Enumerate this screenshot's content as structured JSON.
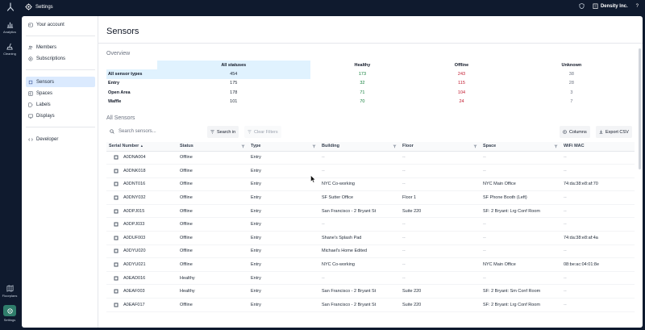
{
  "topbar": {
    "title": "Settings",
    "org": "Density Inc.",
    "help": "?"
  },
  "rail": {
    "items": [
      {
        "label": "Analytics",
        "icon": "analytics-icon"
      },
      {
        "label": "Cleaning",
        "icon": "cleaning-icon"
      },
      {
        "label": "Floorplans",
        "icon": "floorplans-icon"
      },
      {
        "label": "Settings",
        "icon": "settings-icon",
        "active": true
      }
    ]
  },
  "nav": {
    "items": [
      {
        "label": "Your account",
        "icon": "account-icon"
      },
      {
        "label": "Members",
        "icon": "members-icon"
      },
      {
        "label": "Subscriptions",
        "icon": "subscriptions-icon"
      },
      {
        "label": "Sensors",
        "icon": "sensors-icon",
        "active": true
      },
      {
        "label": "Spaces",
        "icon": "spaces-icon"
      },
      {
        "label": "Labels",
        "icon": "labels-icon"
      },
      {
        "label": "Displays",
        "icon": "displays-icon"
      },
      {
        "label": "Developer",
        "icon": "developer-icon"
      }
    ]
  },
  "main": {
    "title": "Sensors",
    "overview_label": "Overview",
    "all_sensors_label": "All Sensors"
  },
  "overview": {
    "headers": [
      "All statuses",
      "Healthy",
      "Offline",
      "Unknown"
    ],
    "rows": [
      {
        "label": "All sensor types",
        "values": [
          "454",
          "173",
          "243",
          "38"
        ]
      },
      {
        "label": "Entry",
        "values": [
          "175",
          "32",
          "115",
          "28"
        ]
      },
      {
        "label": "Open Area",
        "values": [
          "178",
          "71",
          "104",
          "3"
        ]
      },
      {
        "label": "Waffle",
        "values": [
          "101",
          "70",
          "24",
          "7"
        ]
      }
    ]
  },
  "toolbar": {
    "search_placeholder": "Search sensors...",
    "search_button": "Search in",
    "clear_filters": "Clear Filters",
    "columns_button": "Columns",
    "export_button": "Export CSV"
  },
  "grid": {
    "headers": [
      "Serial Number",
      "Status",
      "Type",
      "Building",
      "Floor",
      "Space",
      "WiFi MAC"
    ],
    "sort_indicator": "▲",
    "rows": [
      [
        "A0DNA004",
        "Offline",
        "Entry",
        "--",
        "--",
        "--",
        "--"
      ],
      [
        "A0DNK018",
        "Offline",
        "Entry",
        "--",
        "--",
        "--",
        "--"
      ],
      [
        "A0DNT016",
        "Offline",
        "Entry",
        "NYC Co-working",
        "--",
        "NYC Main Office",
        "74:da:38:e8:af:70"
      ],
      [
        "A0DNY032",
        "Offline",
        "Entry",
        "SF Sutter Office",
        "Floor 1",
        "SF Phone Booth (Left)",
        "--"
      ],
      [
        "A0DPJ015",
        "Offline",
        "Entry",
        "San Francisco - 2 Bryant St",
        "Suite 220",
        "SF: 2 Bryant: Lrg Conf Room",
        "--"
      ],
      [
        "A0DPJ033",
        "Offline",
        "Entry",
        "--",
        "--",
        "--",
        "--"
      ],
      [
        "A0DUF003",
        "Offline",
        "Entry",
        "Shane's Splash Pad",
        "--",
        "--",
        "74:da:38:e8:af:4a"
      ],
      [
        "A0DYU020",
        "Offline",
        "Entry",
        "Michael's Home Edited",
        "--",
        "--",
        "--"
      ],
      [
        "A0DYU021",
        "Offline",
        "Entry",
        "NYC Co-working",
        "--",
        "NYC Main Office",
        "08:be:ac:04:01:8e"
      ],
      [
        "A0EAD016",
        "Healthy",
        "Entry",
        "--",
        "--",
        "--",
        "--"
      ],
      [
        "A0EAF003",
        "Healthy",
        "Entry",
        "San Francisco - 2 Bryant St",
        "Suite 220",
        "SF: 2 Bryant: Sm Conf Room",
        "--"
      ],
      [
        "A0EAF017",
        "Offline",
        "Entry",
        "San Francisco - 2 Bryant St",
        "Suite 220",
        "SF: 2 Bryant: Lrg Conf Room",
        "--"
      ]
    ]
  },
  "colors": {
    "healthy": "#15803d",
    "offline": "#c2192e",
    "brand_dark": "#0f1a2e",
    "active_nav": "#dbeafe",
    "active_rail": "#2f7d6b"
  }
}
